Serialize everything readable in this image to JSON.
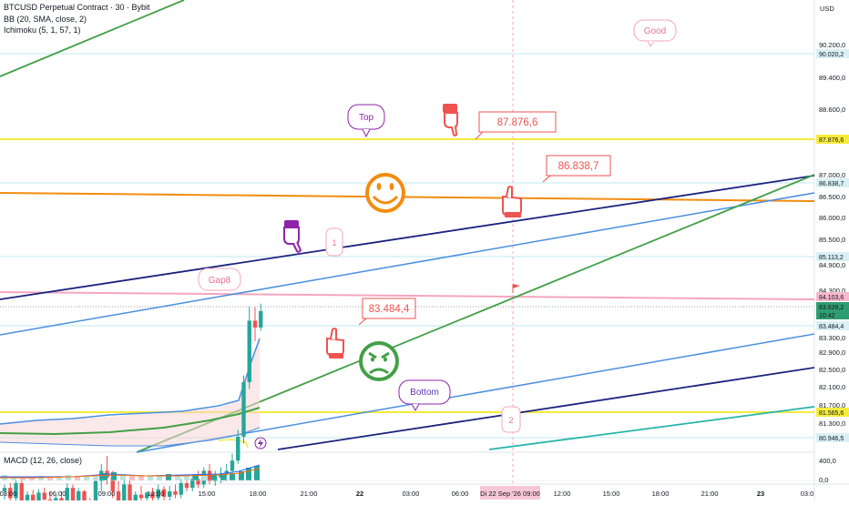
{
  "legend": {
    "symbol_line": "BTCUSD Perpetual Contract · 30 · Bybit",
    "bb_line": "BB (20, SMA, close, 2)",
    "ichimoku_line": "Ichimoku (5, 1, 57, 1)",
    "macd_line": "MACD (12, 26, close)"
  },
  "price_axis": {
    "currency": "USD",
    "ticks": [
      "90.200,0",
      "89.400,0",
      "88.600,0",
      "87.000,0",
      "86.500,0",
      "86.000,0",
      "85.500,0",
      "84.900,0",
      "84.300,0",
      "83.300,0",
      "82.900,0",
      "82.500,0",
      "82.100,0",
      "81.700,0",
      "81.300,0"
    ],
    "tags": [
      {
        "text": "90.020,2",
        "color": "#d9f0f5"
      },
      {
        "text": "87.876,6",
        "color": "#f6ec3c"
      },
      {
        "text": "86.838,7",
        "color": "#d9f0f5"
      },
      {
        "text": "85.113,2",
        "color": "#d9f0f5"
      },
      {
        "text": "84.103,6",
        "color": "#f5b8cc"
      },
      {
        "text": "83.939,2",
        "color": "#2e9d72"
      },
      {
        "text": "10:42",
        "color": "#2e9d72"
      },
      {
        "text": "83.484,4",
        "color": "#d9f0f5"
      },
      {
        "text": "81.565,6",
        "color": "#f6ec3c"
      },
      {
        "text": "80.946,5",
        "color": "#d9f0f5"
      }
    ],
    "macd_ticks": [
      "400,0",
      "0,0"
    ]
  },
  "time_axis": {
    "ticks": [
      "03:00",
      "06:00",
      "09:00",
      "12:00",
      "15:00",
      "18:00",
      "21:00",
      "22",
      "03:00",
      "06:00",
      "09:00",
      "12:00",
      "15:00",
      "18:00",
      "21:00",
      "23",
      "03:0"
    ],
    "crosshair_label": "Di 22 Sep '26  09:00"
  },
  "annotations": {
    "good": "Good",
    "top": "Top",
    "bottom": "Bottom",
    "gap": "Gap8",
    "one": "1",
    "two": "2",
    "price1": "87.876,6",
    "price2": "86.838,7",
    "price3": "83.484,4"
  },
  "colors": {
    "up": "#26a69a",
    "down": "#ef5350",
    "yellow_line": "#f5eb3a",
    "orange_line": "#f28c0f",
    "navy_line": "#1a237e",
    "blue_line": "#4a8fe0",
    "green_line": "#43a047",
    "pink_line": "#f4a6bf",
    "teal_line": "#26b5a8"
  },
  "icons": [
    "smiley-face-icon",
    "frown-face-icon",
    "pointing-hand-icon",
    "flag-icon",
    "lightning-icon"
  ],
  "chart_data": {
    "type": "candlestick",
    "note": "BTCUSD 30-minute candles (OHLC) with horizontal levels and trend lines",
    "candles": [
      {
        "o": 81300,
        "h": 81400,
        "l": 81180,
        "c": 81350
      },
      {
        "o": 81350,
        "h": 81420,
        "l": 81100,
        "c": 81200
      },
      {
        "o": 81200,
        "h": 81500,
        "l": 81150,
        "c": 81420
      },
      {
        "o": 81420,
        "h": 81480,
        "l": 81050,
        "c": 81100
      },
      {
        "o": 81100,
        "h": 81300,
        "l": 81000,
        "c": 81250
      },
      {
        "o": 81250,
        "h": 81320,
        "l": 81100,
        "c": 81150
      },
      {
        "o": 81150,
        "h": 81330,
        "l": 81080,
        "c": 81280
      },
      {
        "o": 81280,
        "h": 81350,
        "l": 81100,
        "c": 81180
      },
      {
        "o": 81180,
        "h": 81300,
        "l": 80950,
        "c": 81050
      },
      {
        "o": 81050,
        "h": 81250,
        "l": 81000,
        "c": 81200
      },
      {
        "o": 81200,
        "h": 81300,
        "l": 81050,
        "c": 81120
      },
      {
        "o": 81120,
        "h": 81420,
        "l": 81080,
        "c": 81350
      },
      {
        "o": 81350,
        "h": 81400,
        "l": 81100,
        "c": 81150
      },
      {
        "o": 81150,
        "h": 81350,
        "l": 81080,
        "c": 81300
      },
      {
        "o": 81300,
        "h": 81320,
        "l": 81050,
        "c": 81120
      },
      {
        "o": 81120,
        "h": 81200,
        "l": 81000,
        "c": 81080
      },
      {
        "o": 81080,
        "h": 81500,
        "l": 81050,
        "c": 81450
      },
      {
        "o": 81450,
        "h": 81700,
        "l": 81300,
        "c": 81600
      },
      {
        "o": 81600,
        "h": 81820,
        "l": 81400,
        "c": 81500
      },
      {
        "o": 81500,
        "h": 81600,
        "l": 81200,
        "c": 81300
      },
      {
        "o": 81300,
        "h": 81450,
        "l": 81100,
        "c": 81150
      },
      {
        "o": 81150,
        "h": 81500,
        "l": 81100,
        "c": 81400
      },
      {
        "o": 81400,
        "h": 81500,
        "l": 80980,
        "c": 81050
      },
      {
        "o": 81050,
        "h": 81300,
        "l": 80950,
        "c": 81250
      },
      {
        "o": 81250,
        "h": 81380,
        "l": 81150,
        "c": 81200
      },
      {
        "o": 81200,
        "h": 81300,
        "l": 81100,
        "c": 81280
      },
      {
        "o": 81280,
        "h": 81350,
        "l": 81150,
        "c": 81200
      },
      {
        "o": 81200,
        "h": 81400,
        "l": 81150,
        "c": 81330
      },
      {
        "o": 81330,
        "h": 81380,
        "l": 81150,
        "c": 81220
      },
      {
        "o": 81220,
        "h": 81380,
        "l": 81150,
        "c": 81300
      },
      {
        "o": 81300,
        "h": 81400,
        "l": 81200,
        "c": 81250
      },
      {
        "o": 81250,
        "h": 81480,
        "l": 81200,
        "c": 81420
      },
      {
        "o": 81420,
        "h": 81500,
        "l": 81300,
        "c": 81350
      },
      {
        "o": 81350,
        "h": 81550,
        "l": 81300,
        "c": 81480
      },
      {
        "o": 81480,
        "h": 81600,
        "l": 81350,
        "c": 81400
      },
      {
        "o": 81400,
        "h": 81650,
        "l": 81350,
        "c": 81600
      },
      {
        "o": 81600,
        "h": 81700,
        "l": 81400,
        "c": 81450
      },
      {
        "o": 81450,
        "h": 81600,
        "l": 81380,
        "c": 81500
      },
      {
        "o": 81500,
        "h": 81650,
        "l": 81420,
        "c": 81550
      },
      {
        "o": 81550,
        "h": 81700,
        "l": 81450,
        "c": 81600
      },
      {
        "o": 81600,
        "h": 81850,
        "l": 81500,
        "c": 81750
      },
      {
        "o": 81750,
        "h": 82200,
        "l": 81700,
        "c": 82100
      },
      {
        "o": 82100,
        "h": 83000,
        "l": 82000,
        "c": 82900
      },
      {
        "o": 82900,
        "h": 84000,
        "l": 82800,
        "c": 83800
      },
      {
        "o": 83800,
        "h": 84000,
        "l": 83500,
        "c": 83700
      },
      {
        "o": 83700,
        "h": 84050,
        "l": 83650,
        "c": 83940
      }
    ],
    "levels": [
      {
        "price": 90020.2,
        "style": "light-blue"
      },
      {
        "price": 87876.6,
        "style": "yellow"
      },
      {
        "price": 86838.7,
        "style": "light-blue"
      },
      {
        "price": 85113.2,
        "style": "light-blue"
      },
      {
        "price": 84103.6,
        "style": "pink"
      },
      {
        "price": 83484.4,
        "style": "light-blue"
      },
      {
        "price": 81565.6,
        "style": "yellow"
      },
      {
        "price": 80946.5,
        "style": "light-blue"
      }
    ],
    "last_price": 83939.2
  }
}
